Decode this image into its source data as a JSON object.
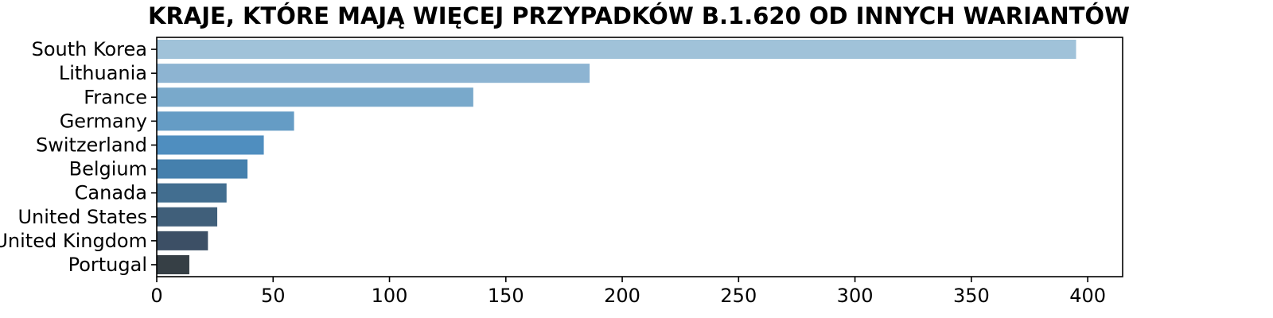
{
  "chart_data": {
    "type": "bar",
    "orientation": "horizontal",
    "title": "KRAJE, KTÓRE MAJĄ WIĘCEJ PRZYPADKÓW B.1.620 OD INNYCH WARIANTÓW",
    "xlabel": "",
    "ylabel": "",
    "categories": [
      "South Korea",
      "Lithuania",
      "France",
      "Germany",
      "Switzerland",
      "Belgium",
      "Canada",
      "United States",
      "United Kingdom",
      "Portugal"
    ],
    "values": [
      395,
      186,
      136,
      59,
      46,
      39,
      30,
      26,
      22,
      14
    ],
    "colors": [
      "#a0c2d9",
      "#8db4d2",
      "#79a9cb",
      "#659cc5",
      "#4f8ebf",
      "#4580ad",
      "#426e90",
      "#405f7a",
      "#3c4f65",
      "#363f45"
    ],
    "xlim": [
      0,
      415
    ],
    "xticks": [
      0,
      50,
      100,
      150,
      200,
      250,
      300,
      350,
      400
    ],
    "grid": false,
    "legend": "none"
  }
}
